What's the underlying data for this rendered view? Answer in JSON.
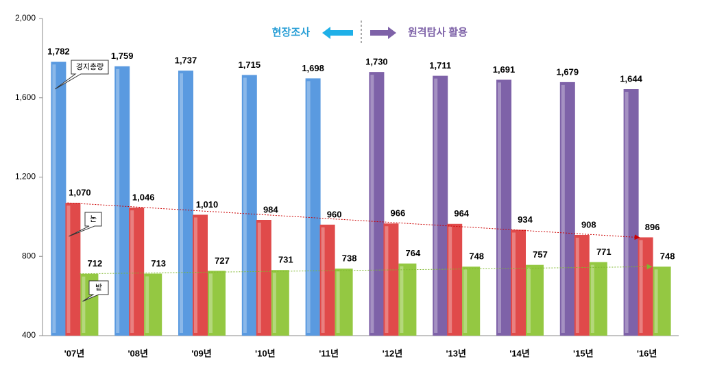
{
  "chart_data": {
    "type": "bar",
    "annotations": [
      "현장조사",
      "원격탐사 활용"
    ],
    "categories": [
      "'07년",
      "'08년",
      "'09년",
      "'10년",
      "'11년",
      "'12년",
      "'13년",
      "'14년",
      "'15년",
      "'16년"
    ],
    "series": [
      {
        "name": "경지총량",
        "colors": [
          "#5a9ae0",
          "#5a9ae0",
          "#5a9ae0",
          "#5a9ae0",
          "#5a9ae0",
          "#7e62a8",
          "#7e62a8",
          "#7e62a8",
          "#7e62a8",
          "#7e62a8"
        ],
        "values": [
          1782,
          1759,
          1737,
          1715,
          1698,
          1730,
          1711,
          1691,
          1679,
          1644
        ],
        "value_labels": [
          "1,782",
          "1,759",
          "1,737",
          "1,715",
          "1,698",
          "1,730",
          "1,711",
          "1,691",
          "1,679",
          "1,644"
        ]
      },
      {
        "name": "논",
        "color": "#e04a4a",
        "values": [
          1070,
          1046,
          1010,
          984,
          960,
          966,
          964,
          934,
          908,
          896
        ],
        "value_labels": [
          "1,070",
          "1,046",
          "1,010",
          "984",
          "960",
          "966",
          "964",
          "934",
          "908",
          "896"
        ]
      },
      {
        "name": "밭",
        "color": "#94c842",
        "values": [
          712,
          713,
          727,
          731,
          738,
          764,
          748,
          757,
          771,
          748
        ]
      }
    ],
    "ylim": [
      400,
      2000
    ],
    "yticks": [
      400,
      800,
      {
        "value": 1200,
        "label": "1,200"
      },
      {
        "value": 1600,
        "label": "1,600"
      },
      {
        "value": 2000,
        "label": "2,000"
      }
    ]
  }
}
